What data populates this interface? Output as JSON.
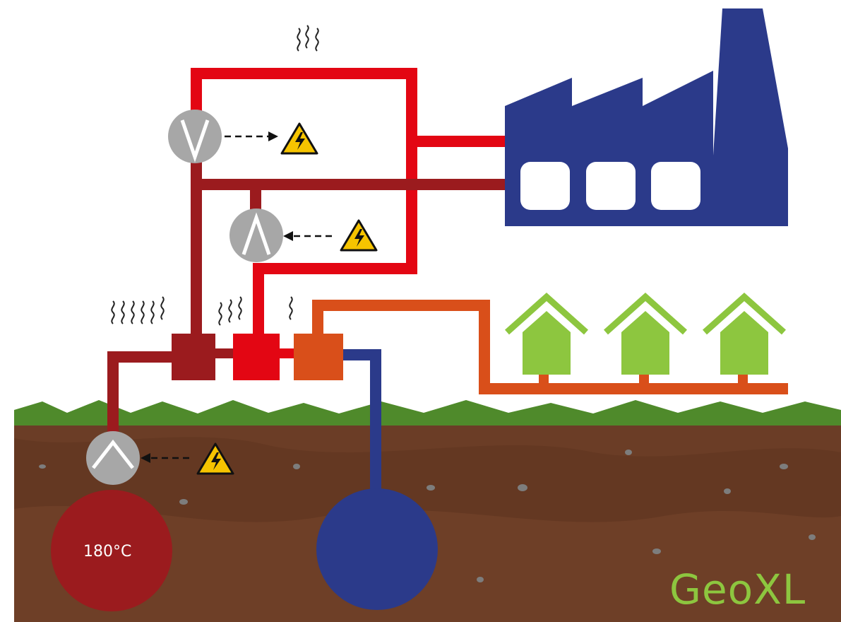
{
  "reservoir": {
    "temperature_label": "180°C"
  },
  "brand": {
    "logo_text": "GeoXL"
  },
  "colors": {
    "hot_pipe": "#e30613",
    "return_pipe": "#9b1b1e",
    "district_pipe": "#d94f1a",
    "cold_pipe": "#2b3a8a",
    "factory": "#2b3a8a",
    "house": "#8dc63f",
    "soil": "#6b3d26",
    "grass": "#4f8a2b",
    "pump": "#a7a7a7",
    "warning": "#f6c400"
  },
  "icons": [
    "turbine-icon",
    "warning-electric-icon",
    "heat-waves-icon",
    "factory-icon",
    "house-icon"
  ]
}
